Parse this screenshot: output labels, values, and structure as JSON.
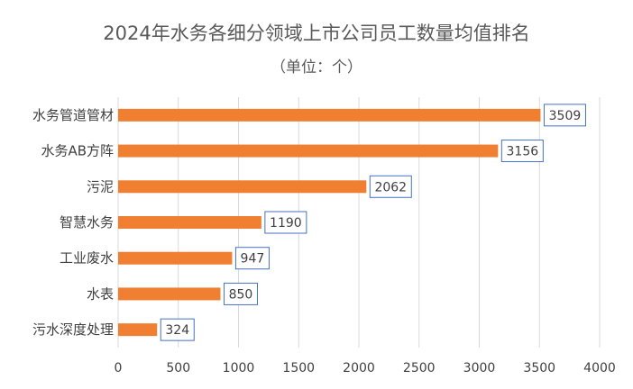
{
  "chart_data": {
    "type": "bar",
    "orientation": "horizontal",
    "title": "2024年水务各细分领域上市公司员工数量均值排名",
    "subtitle": "（单位：个）",
    "categories": [
      "水务管道管材",
      "水务AB方阵",
      "污泥",
      "智慧水务",
      "工业废水",
      "水表",
      "污水深度处理"
    ],
    "values": [
      3509,
      3156,
      2062,
      1190,
      947,
      850,
      324
    ],
    "xlabel": "",
    "ylabel": "",
    "xlim": [
      0,
      4000
    ],
    "xticks": [
      0,
      500,
      1000,
      1500,
      2000,
      2500,
      3000,
      3500,
      4000
    ],
    "grid": true,
    "legend": "none",
    "colors": {
      "bar": "#F07F32",
      "label_border": "#4472C4",
      "grid": "#D9D9D9",
      "text": "#404040",
      "title": "#595959"
    }
  }
}
